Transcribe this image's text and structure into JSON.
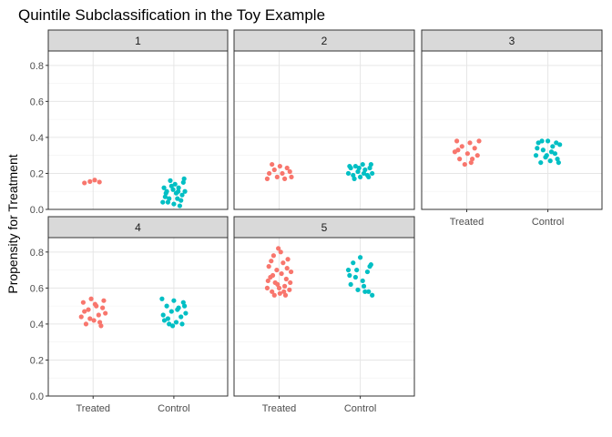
{
  "chart_data": {
    "type": "scatter",
    "title": "Quintile Subclassification in the Toy Example",
    "xlabel": "",
    "ylabel": "Propensity for Treatment",
    "categories": [
      "Treated",
      "Control"
    ],
    "ylim": [
      0,
      0.88
    ],
    "yticks": [
      "0.0",
      "0.2",
      "0.4",
      "0.6",
      "0.8"
    ],
    "grid": true,
    "legend": "none",
    "colors": {
      "Treated": "#F8766D",
      "Control": "#00BFC4"
    },
    "facets": [
      {
        "label": "1",
        "points": [
          {
            "group": "Treated",
            "offset": -0.22,
            "y": 0.147
          },
          {
            "group": "Treated",
            "offset": -0.08,
            "y": 0.155
          },
          {
            "group": "Treated",
            "offset": 0.04,
            "y": 0.163
          },
          {
            "group": "Treated",
            "offset": 0.16,
            "y": 0.152
          },
          {
            "group": "Control",
            "offset": -0.28,
            "y": 0.04
          },
          {
            "group": "Control",
            "offset": -0.22,
            "y": 0.07
          },
          {
            "group": "Control",
            "offset": -0.18,
            "y": 0.1
          },
          {
            "group": "Control",
            "offset": -0.12,
            "y": 0.06
          },
          {
            "group": "Control",
            "offset": -0.06,
            "y": 0.13
          },
          {
            "group": "Control",
            "offset": 0.0,
            "y": 0.03
          },
          {
            "group": "Control",
            "offset": 0.06,
            "y": 0.09
          },
          {
            "group": "Control",
            "offset": 0.12,
            "y": 0.12
          },
          {
            "group": "Control",
            "offset": 0.18,
            "y": 0.05
          },
          {
            "group": "Control",
            "offset": 0.24,
            "y": 0.15
          },
          {
            "group": "Control",
            "offset": 0.28,
            "y": 0.1
          },
          {
            "group": "Control",
            "offset": -0.25,
            "y": 0.12
          },
          {
            "group": "Control",
            "offset": -0.15,
            "y": 0.04
          },
          {
            "group": "Control",
            "offset": -0.02,
            "y": 0.11
          },
          {
            "group": "Control",
            "offset": 0.09,
            "y": 0.06
          },
          {
            "group": "Control",
            "offset": 0.21,
            "y": 0.08
          },
          {
            "group": "Control",
            "offset": 0.26,
            "y": 0.17
          },
          {
            "group": "Control",
            "offset": -0.09,
            "y": 0.16
          },
          {
            "group": "Control",
            "offset": 0.03,
            "y": 0.14
          },
          {
            "group": "Control",
            "offset": 0.15,
            "y": 0.02
          },
          {
            "group": "Control",
            "offset": -0.2,
            "y": 0.09
          },
          {
            "group": "Control",
            "offset": 0.11,
            "y": 0.1
          }
        ]
      },
      {
        "label": "2",
        "points": [
          {
            "group": "Treated",
            "offset": -0.3,
            "y": 0.17
          },
          {
            "group": "Treated",
            "offset": -0.25,
            "y": 0.2
          },
          {
            "group": "Treated",
            "offset": -0.18,
            "y": 0.25
          },
          {
            "group": "Treated",
            "offset": -0.12,
            "y": 0.22
          },
          {
            "group": "Treated",
            "offset": -0.05,
            "y": 0.18
          },
          {
            "group": "Treated",
            "offset": 0.02,
            "y": 0.24
          },
          {
            "group": "Treated",
            "offset": 0.08,
            "y": 0.2
          },
          {
            "group": "Treated",
            "offset": 0.14,
            "y": 0.17
          },
          {
            "group": "Treated",
            "offset": 0.2,
            "y": 0.23
          },
          {
            "group": "Treated",
            "offset": 0.27,
            "y": 0.21
          },
          {
            "group": "Treated",
            "offset": 0.31,
            "y": 0.18
          },
          {
            "group": "Control",
            "offset": -0.3,
            "y": 0.2
          },
          {
            "group": "Control",
            "offset": -0.24,
            "y": 0.23
          },
          {
            "group": "Control",
            "offset": -0.18,
            "y": 0.19
          },
          {
            "group": "Control",
            "offset": -0.12,
            "y": 0.24
          },
          {
            "group": "Control",
            "offset": -0.06,
            "y": 0.21
          },
          {
            "group": "Control",
            "offset": 0.0,
            "y": 0.18
          },
          {
            "group": "Control",
            "offset": 0.06,
            "y": 0.25
          },
          {
            "group": "Control",
            "offset": 0.12,
            "y": 0.22
          },
          {
            "group": "Control",
            "offset": 0.18,
            "y": 0.19
          },
          {
            "group": "Control",
            "offset": 0.24,
            "y": 0.23
          },
          {
            "group": "Control",
            "offset": 0.3,
            "y": 0.2
          },
          {
            "group": "Control",
            "offset": -0.27,
            "y": 0.24
          },
          {
            "group": "Control",
            "offset": -0.15,
            "y": 0.17
          },
          {
            "group": "Control",
            "offset": -0.03,
            "y": 0.23
          },
          {
            "group": "Control",
            "offset": 0.09,
            "y": 0.2
          },
          {
            "group": "Control",
            "offset": 0.21,
            "y": 0.18
          },
          {
            "group": "Control",
            "offset": 0.27,
            "y": 0.25
          }
        ]
      },
      {
        "label": "3",
        "points": [
          {
            "group": "Treated",
            "offset": -0.3,
            "y": 0.32
          },
          {
            "group": "Treated",
            "offset": -0.25,
            "y": 0.38
          },
          {
            "group": "Treated",
            "offset": -0.18,
            "y": 0.28
          },
          {
            "group": "Treated",
            "offset": -0.12,
            "y": 0.35
          },
          {
            "group": "Treated",
            "offset": -0.05,
            "y": 0.25
          },
          {
            "group": "Treated",
            "offset": 0.02,
            "y": 0.31
          },
          {
            "group": "Treated",
            "offset": 0.08,
            "y": 0.37
          },
          {
            "group": "Treated",
            "offset": 0.14,
            "y": 0.28
          },
          {
            "group": "Treated",
            "offset": 0.2,
            "y": 0.34
          },
          {
            "group": "Treated",
            "offset": 0.27,
            "y": 0.3
          },
          {
            "group": "Treated",
            "offset": 0.31,
            "y": 0.38
          },
          {
            "group": "Treated",
            "offset": -0.22,
            "y": 0.33
          },
          {
            "group": "Treated",
            "offset": 0.11,
            "y": 0.26
          },
          {
            "group": "Control",
            "offset": -0.3,
            "y": 0.3
          },
          {
            "group": "Control",
            "offset": -0.24,
            "y": 0.37
          },
          {
            "group": "Control",
            "offset": -0.18,
            "y": 0.26
          },
          {
            "group": "Control",
            "offset": -0.12,
            "y": 0.33
          },
          {
            "group": "Control",
            "offset": -0.06,
            "y": 0.29
          },
          {
            "group": "Control",
            "offset": 0.0,
            "y": 0.38
          },
          {
            "group": "Control",
            "offset": 0.06,
            "y": 0.27
          },
          {
            "group": "Control",
            "offset": 0.12,
            "y": 0.35
          },
          {
            "group": "Control",
            "offset": 0.18,
            "y": 0.31
          },
          {
            "group": "Control",
            "offset": 0.24,
            "y": 0.28
          },
          {
            "group": "Control",
            "offset": 0.3,
            "y": 0.36
          },
          {
            "group": "Control",
            "offset": -0.27,
            "y": 0.34
          },
          {
            "group": "Control",
            "offset": -0.15,
            "y": 0.38
          },
          {
            "group": "Control",
            "offset": -0.03,
            "y": 0.3
          },
          {
            "group": "Control",
            "offset": 0.09,
            "y": 0.32
          },
          {
            "group": "Control",
            "offset": 0.21,
            "y": 0.37
          },
          {
            "group": "Control",
            "offset": 0.27,
            "y": 0.26
          }
        ]
      },
      {
        "label": "4",
        "points": [
          {
            "group": "Treated",
            "offset": -0.3,
            "y": 0.44
          },
          {
            "group": "Treated",
            "offset": -0.25,
            "y": 0.52
          },
          {
            "group": "Treated",
            "offset": -0.18,
            "y": 0.4
          },
          {
            "group": "Treated",
            "offset": -0.12,
            "y": 0.48
          },
          {
            "group": "Treated",
            "offset": -0.05,
            "y": 0.54
          },
          {
            "group": "Treated",
            "offset": 0.02,
            "y": 0.42
          },
          {
            "group": "Treated",
            "offset": 0.08,
            "y": 0.5
          },
          {
            "group": "Treated",
            "offset": 0.14,
            "y": 0.45
          },
          {
            "group": "Treated",
            "offset": 0.2,
            "y": 0.39
          },
          {
            "group": "Treated",
            "offset": 0.27,
            "y": 0.53
          },
          {
            "group": "Treated",
            "offset": 0.31,
            "y": 0.46
          },
          {
            "group": "Treated",
            "offset": -0.22,
            "y": 0.47
          },
          {
            "group": "Treated",
            "offset": -0.08,
            "y": 0.43
          },
          {
            "group": "Treated",
            "offset": 0.05,
            "y": 0.51
          },
          {
            "group": "Treated",
            "offset": 0.17,
            "y": 0.41
          },
          {
            "group": "Treated",
            "offset": 0.24,
            "y": 0.49
          },
          {
            "group": "Control",
            "offset": -0.3,
            "y": 0.54
          },
          {
            "group": "Control",
            "offset": -0.24,
            "y": 0.42
          },
          {
            "group": "Control",
            "offset": -0.18,
            "y": 0.5
          },
          {
            "group": "Control",
            "offset": -0.12,
            "y": 0.4
          },
          {
            "group": "Control",
            "offset": -0.06,
            "y": 0.47
          },
          {
            "group": "Control",
            "offset": 0.0,
            "y": 0.53
          },
          {
            "group": "Control",
            "offset": 0.06,
            "y": 0.41
          },
          {
            "group": "Control",
            "offset": 0.12,
            "y": 0.49
          },
          {
            "group": "Control",
            "offset": 0.18,
            "y": 0.44
          },
          {
            "group": "Control",
            "offset": 0.24,
            "y": 0.52
          },
          {
            "group": "Control",
            "offset": 0.3,
            "y": 0.46
          },
          {
            "group": "Control",
            "offset": -0.27,
            "y": 0.45
          },
          {
            "group": "Control",
            "offset": -0.15,
            "y": 0.43
          },
          {
            "group": "Control",
            "offset": -0.03,
            "y": 0.39
          },
          {
            "group": "Control",
            "offset": 0.09,
            "y": 0.48
          },
          {
            "group": "Control",
            "offset": 0.21,
            "y": 0.4
          },
          {
            "group": "Control",
            "offset": 0.27,
            "y": 0.5
          }
        ]
      },
      {
        "label": "5",
        "points": [
          {
            "group": "Treated",
            "offset": -0.3,
            "y": 0.6
          },
          {
            "group": "Treated",
            "offset": -0.26,
            "y": 0.72
          },
          {
            "group": "Treated",
            "offset": -0.22,
            "y": 0.66
          },
          {
            "group": "Treated",
            "offset": -0.18,
            "y": 0.58
          },
          {
            "group": "Treated",
            "offset": -0.14,
            "y": 0.78
          },
          {
            "group": "Treated",
            "offset": -0.1,
            "y": 0.63
          },
          {
            "group": "Treated",
            "offset": -0.06,
            "y": 0.7
          },
          {
            "group": "Treated",
            "offset": -0.02,
            "y": 0.82
          },
          {
            "group": "Treated",
            "offset": 0.02,
            "y": 0.57
          },
          {
            "group": "Treated",
            "offset": 0.06,
            "y": 0.68
          },
          {
            "group": "Treated",
            "offset": 0.1,
            "y": 0.74
          },
          {
            "group": "Treated",
            "offset": 0.14,
            "y": 0.61
          },
          {
            "group": "Treated",
            "offset": 0.18,
            "y": 0.65
          },
          {
            "group": "Treated",
            "offset": 0.22,
            "y": 0.76
          },
          {
            "group": "Treated",
            "offset": 0.26,
            "y": 0.59
          },
          {
            "group": "Treated",
            "offset": 0.3,
            "y": 0.69
          },
          {
            "group": "Treated",
            "offset": -0.28,
            "y": 0.64
          },
          {
            "group": "Treated",
            "offset": -0.2,
            "y": 0.75
          },
          {
            "group": "Treated",
            "offset": -0.12,
            "y": 0.56
          },
          {
            "group": "Treated",
            "offset": -0.04,
            "y": 0.62
          },
          {
            "group": "Treated",
            "offset": 0.04,
            "y": 0.8
          },
          {
            "group": "Treated",
            "offset": 0.12,
            "y": 0.58
          },
          {
            "group": "Treated",
            "offset": 0.2,
            "y": 0.71
          },
          {
            "group": "Treated",
            "offset": 0.28,
            "y": 0.63
          },
          {
            "group": "Treated",
            "offset": -0.16,
            "y": 0.67
          },
          {
            "group": "Treated",
            "offset": 0.0,
            "y": 0.6
          },
          {
            "group": "Treated",
            "offset": 0.16,
            "y": 0.56
          },
          {
            "group": "Control",
            "offset": -0.3,
            "y": 0.7
          },
          {
            "group": "Control",
            "offset": -0.24,
            "y": 0.62
          },
          {
            "group": "Control",
            "offset": -0.18,
            "y": 0.74
          },
          {
            "group": "Control",
            "offset": -0.12,
            "y": 0.66
          },
          {
            "group": "Control",
            "offset": -0.06,
            "y": 0.59
          },
          {
            "group": "Control",
            "offset": 0.0,
            "y": 0.77
          },
          {
            "group": "Control",
            "offset": 0.06,
            "y": 0.64
          },
          {
            "group": "Control",
            "offset": 0.12,
            "y": 0.58
          },
          {
            "group": "Control",
            "offset": 0.18,
            "y": 0.69
          },
          {
            "group": "Control",
            "offset": 0.24,
            "y": 0.72
          },
          {
            "group": "Control",
            "offset": 0.3,
            "y": 0.56
          },
          {
            "group": "Control",
            "offset": -0.27,
            "y": 0.67
          },
          {
            "group": "Control",
            "offset": -0.09,
            "y": 0.7
          },
          {
            "group": "Control",
            "offset": 0.09,
            "y": 0.61
          },
          {
            "group": "Control",
            "offset": 0.21,
            "y": 0.58
          },
          {
            "group": "Control",
            "offset": 0.27,
            "y": 0.73
          }
        ]
      }
    ]
  }
}
